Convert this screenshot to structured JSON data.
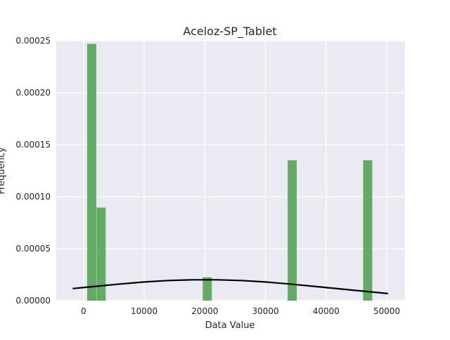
{
  "chart_data": {
    "type": "bar",
    "subtype": "histogram-with-density-curve",
    "title": "Aceloz-SP_Tablet",
    "xlabel": "Data Value",
    "ylabel": "Frequency",
    "xlim": [
      -4500,
      53000
    ],
    "ylim": [
      0,
      0.00025
    ],
    "xticks": [
      0,
      10000,
      20000,
      30000,
      40000,
      50000
    ],
    "xtick_labels": [
      "0",
      "10000",
      "20000",
      "30000",
      "40000",
      "50000"
    ],
    "yticks": [
      0,
      5e-05,
      0.0001,
      0.00015,
      0.0002,
      0.00025
    ],
    "ytick_labels": [
      "0.00000",
      "0.00005",
      "0.00010",
      "0.00015",
      "0.00020",
      "0.00025"
    ],
    "grid": true,
    "bar_color": "#4c9f4c",
    "curve_color": "#000000",
    "background_color": "#eaeaf2",
    "bars": [
      {
        "x0": 600,
        "x1": 2100,
        "value": 0.000247
      },
      {
        "x0": 2150,
        "x1": 3650,
        "value": 8.95e-05
      },
      {
        "x0": 19650,
        "x1": 21150,
        "value": 2.25e-05
      },
      {
        "x0": 33650,
        "x1": 35150,
        "value": 0.000135
      },
      {
        "x0": 46100,
        "x1": 47600,
        "value": 0.000135
      }
    ],
    "density_curve": {
      "x": [
        -1800,
        2000,
        6000,
        10000,
        14000,
        18000,
        22000,
        26000,
        30000,
        34000,
        38000,
        42000,
        46000,
        50200
      ],
      "y": [
        1.16e-05,
        1.38e-05,
        1.6e-05,
        1.8e-05,
        1.94e-05,
        2.01e-05,
        2.01e-05,
        1.94e-05,
        1.8e-05,
        1.6e-05,
        1.38e-05,
        1.15e-05,
        9.2e-06,
        6.8e-06
      ]
    }
  }
}
